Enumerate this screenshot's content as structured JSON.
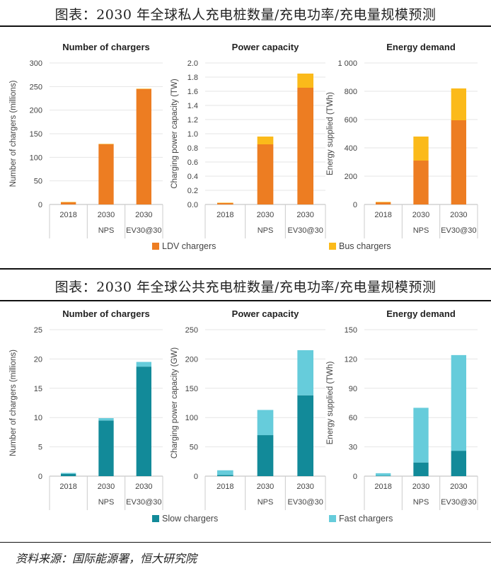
{
  "headers": {
    "private": "图表：2030 年全球私人充电桩数量/充电功率/充电量规模预测",
    "public": "图表：2030 年全球公共充电桩数量/充电功率/充电量规模预测"
  },
  "source": "资料来源：国际能源署，恒大研究院",
  "chart_data": [
    {
      "type": "bar",
      "stacked": true,
      "section": "private",
      "title": "Number of chargers",
      "ylabel": "Number of chargers (millions)",
      "ylim": [
        0,
        300
      ],
      "yticks": [
        "0",
        "50",
        "100",
        "150",
        "200",
        "250",
        "300"
      ],
      "categories": [
        [
          "2018",
          ""
        ],
        [
          "2030",
          "NPS"
        ],
        [
          "2030",
          "EV30@30"
        ]
      ],
      "series": [
        {
          "name": "LDV chargers",
          "values": [
            5,
            128,
            245
          ]
        },
        {
          "name": "Bus chargers",
          "values": [
            0.3,
            0.5,
            0.5
          ]
        }
      ]
    },
    {
      "type": "bar",
      "stacked": true,
      "section": "private",
      "title": "Power capacity",
      "ylabel": "Charging power capacity (TW)",
      "ylim": [
        0,
        2.0
      ],
      "yticks": [
        "0.0",
        "0.2",
        "0.4",
        "0.6",
        "0.8",
        "1.0",
        "1.2",
        "1.4",
        "1.6",
        "1.8",
        "2.0"
      ],
      "categories": [
        [
          "2018",
          ""
        ],
        [
          "2030",
          "NPS"
        ],
        [
          "2030",
          "EV30@30"
        ]
      ],
      "series": [
        {
          "name": "LDV chargers",
          "values": [
            0.02,
            0.85,
            1.65
          ]
        },
        {
          "name": "Bus chargers",
          "values": [
            0.005,
            0.11,
            0.2
          ]
        }
      ]
    },
    {
      "type": "bar",
      "stacked": true,
      "section": "private",
      "title": "Energy demand",
      "ylabel": "Energy supplied (TWh)",
      "ylim": [
        0,
        1000
      ],
      "yticks": [
        "0",
        "200",
        "400",
        "600",
        "800",
        "1 000"
      ],
      "categories": [
        [
          "2018",
          ""
        ],
        [
          "2030",
          "NPS"
        ],
        [
          "2030",
          "EV30@30"
        ]
      ],
      "series": [
        {
          "name": "LDV chargers",
          "values": [
            15,
            310,
            595
          ]
        },
        {
          "name": "Bus chargers",
          "values": [
            3,
            170,
            225
          ]
        }
      ]
    },
    {
      "type": "bar",
      "stacked": true,
      "section": "public",
      "title": "Number of chargers",
      "ylabel": "Number of chargers (millions)",
      "ylim": [
        0,
        25
      ],
      "yticks": [
        "0",
        "5",
        "10",
        "15",
        "20",
        "25"
      ],
      "categories": [
        [
          "2018",
          ""
        ],
        [
          "2030",
          "NPS"
        ],
        [
          "2030",
          "EV30@30"
        ]
      ],
      "series": [
        {
          "name": "Slow chargers",
          "values": [
            0.4,
            9.5,
            18.7
          ]
        },
        {
          "name": "Fast chargers",
          "values": [
            0.15,
            0.4,
            0.8
          ]
        }
      ]
    },
    {
      "type": "bar",
      "stacked": true,
      "section": "public",
      "title": "Power capacity",
      "ylabel": "Charging power capacity (GW)",
      "ylim": [
        0,
        250
      ],
      "yticks": [
        "0",
        "50",
        "100",
        "150",
        "200",
        "250"
      ],
      "categories": [
        [
          "2018",
          ""
        ],
        [
          "2030",
          "NPS"
        ],
        [
          "2030",
          "EV30@30"
        ]
      ],
      "series": [
        {
          "name": "Slow chargers",
          "values": [
            2,
            70,
            138
          ]
        },
        {
          "name": "Fast chargers",
          "values": [
            8,
            43,
            77
          ]
        }
      ]
    },
    {
      "type": "bar",
      "stacked": true,
      "section": "public",
      "title": "Energy demand",
      "ylabel": "Energy supplied (TWh)",
      "ylim": [
        0,
        150
      ],
      "yticks": [
        "0",
        "30",
        "60",
        "90",
        "120",
        "150"
      ],
      "categories": [
        [
          "2018",
          ""
        ],
        [
          "2030",
          "NPS"
        ],
        [
          "2030",
          "EV30@30"
        ]
      ],
      "series": [
        {
          "name": "Slow chargers",
          "values": [
            0.5,
            14,
            26
          ]
        },
        {
          "name": "Fast chargers",
          "values": [
            2.5,
            56,
            98
          ]
        }
      ]
    }
  ],
  "legends": {
    "private": [
      {
        "label": "LDV chargers",
        "color": "#ED7D22"
      },
      {
        "label": "Bus chargers",
        "color": "#FBBA1A"
      }
    ],
    "public": [
      {
        "label": "Slow chargers",
        "color": "#128A99"
      },
      {
        "label": "Fast chargers",
        "color": "#66CCDB"
      }
    ]
  }
}
